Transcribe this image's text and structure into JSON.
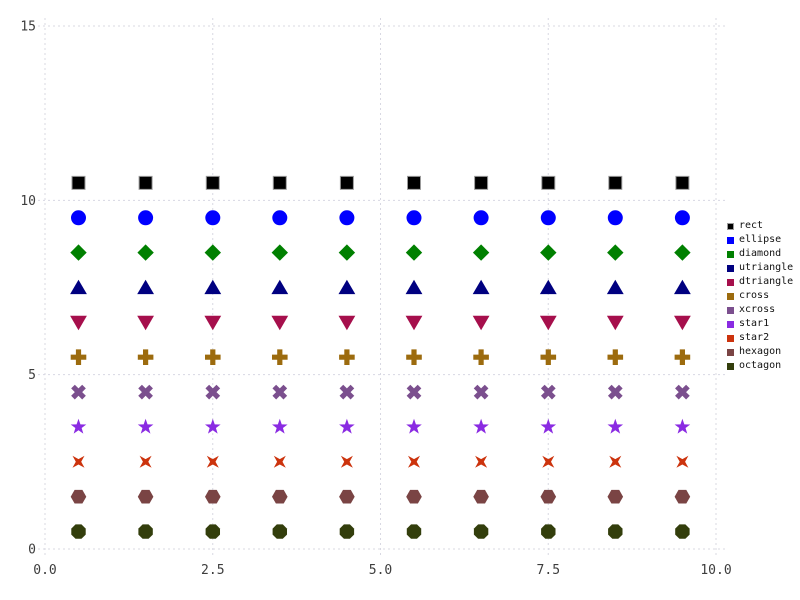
{
  "figure": {
    "background": "#ffffff",
    "tick_label_color": "#3d3d3d",
    "legend_text_color": "#111111"
  },
  "chart_data": {
    "type": "scatter",
    "title": "",
    "xlabel": "",
    "ylabel": "",
    "x": [
      0.5,
      1.5,
      2.5,
      3.5,
      4.5,
      5.5,
      6.5,
      7.5,
      8.5,
      9.5
    ],
    "series": [
      {
        "name": "rect",
        "marker": "rect",
        "color": "#000000",
        "y": 10.5
      },
      {
        "name": "ellipse",
        "marker": "ellipse",
        "color": "#0000ff",
        "y": 9.5
      },
      {
        "name": "diamond",
        "marker": "diamond",
        "color": "#008000",
        "y": 8.5
      },
      {
        "name": "utriangle",
        "marker": "utriangle",
        "color": "#000080",
        "y": 7.5
      },
      {
        "name": "dtriangle",
        "marker": "dtriangle",
        "color": "#a60f4c",
        "y": 6.5
      },
      {
        "name": "cross",
        "marker": "cross",
        "color": "#9c6b0e",
        "y": 5.5
      },
      {
        "name": "xcross",
        "marker": "xcross",
        "color": "#7b4f8e",
        "y": 4.5
      },
      {
        "name": "star1",
        "marker": "star1",
        "color": "#8a2be2",
        "y": 3.5
      },
      {
        "name": "star2",
        "marker": "star2",
        "color": "#cc330d",
        "y": 2.5
      },
      {
        "name": "hexagon",
        "marker": "hexagon",
        "color": "#7a4444",
        "y": 1.5
      },
      {
        "name": "octagon",
        "marker": "octagon",
        "color": "#333e0c",
        "y": 0.5
      }
    ],
    "xticks": {
      "values": [
        0,
        2.5,
        5,
        7.5,
        10
      ],
      "labels": [
        "0.0",
        "2.5",
        "5.0",
        "7.5",
        "10.0"
      ]
    },
    "yticks": {
      "values": [
        0,
        5,
        10,
        15
      ],
      "labels": [
        "0",
        "5",
        "10",
        "15"
      ]
    },
    "xlim": [
      0,
      10.15
    ],
    "ylim": [
      0,
      15.25
    ],
    "grid": {
      "visible": true,
      "style": "dashed",
      "color": "#d8d8e2"
    },
    "legend": {
      "position": "right",
      "marker": "square"
    }
  }
}
